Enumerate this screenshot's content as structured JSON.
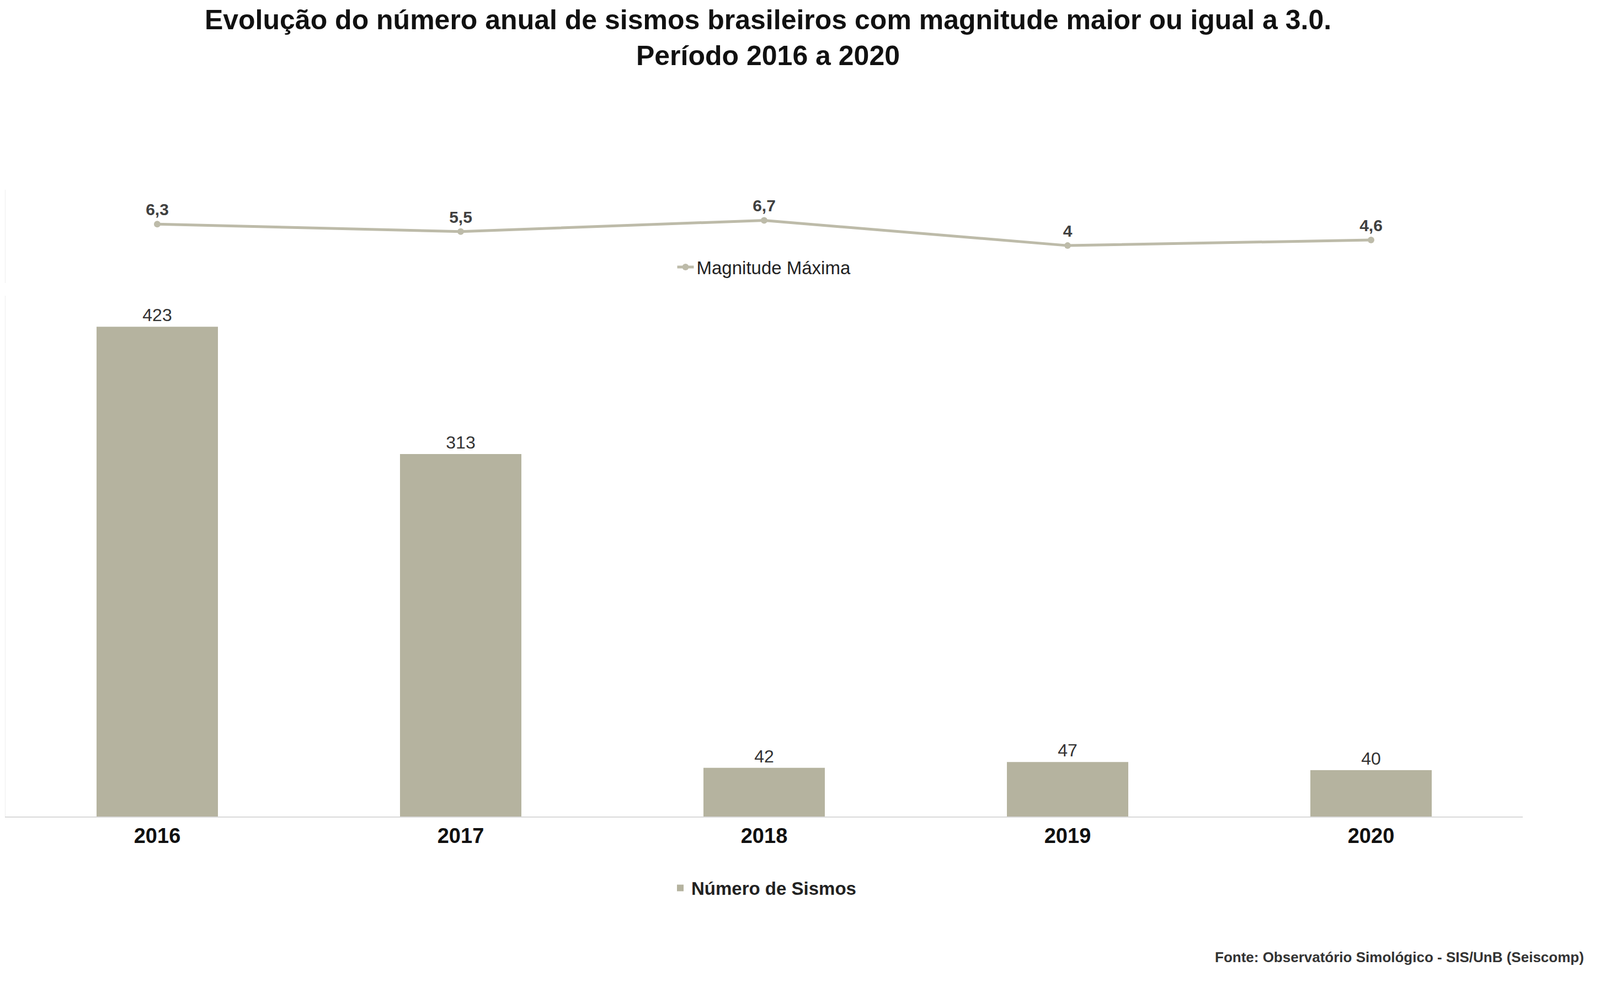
{
  "chart_data": {
    "type": "bar",
    "title": "Evolução do número anual de sismos brasileiros com magnitude maior ou igual a 3.0.",
    "subtitle": "Período 2016 a 2020",
    "categories": [
      "2016",
      "2017",
      "2018",
      "2019",
      "2020"
    ],
    "series": [
      {
        "name": "Número de Sismos",
        "type": "bar",
        "color": "#b5b39f",
        "values": [
          423,
          313,
          42,
          47,
          40
        ]
      },
      {
        "name": "Magnitude Máxima",
        "type": "line",
        "axis": "y2",
        "color": "#bdbba9",
        "marker": "circle",
        "values": [
          6.3,
          5.5,
          6.7,
          4,
          4.6
        ],
        "value_labels": [
          "6,3",
          "5,5",
          "6,7",
          "4",
          "4,6"
        ]
      }
    ],
    "ylim": [
      0,
      450
    ],
    "y2lim": [
      0,
      10
    ],
    "data_labels": true,
    "grid": false,
    "tick_labels": "x",
    "annotations": [
      "Fonte: Observatório Simológico - SIS/UnB (Seiscomp)"
    ]
  }
}
